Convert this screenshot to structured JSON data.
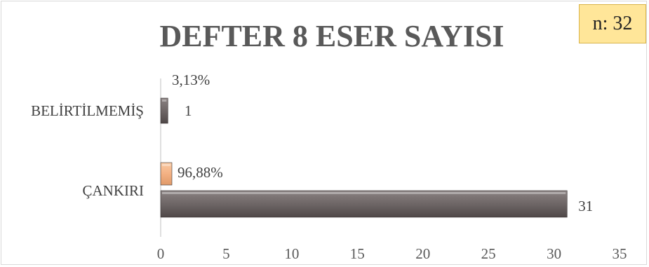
{
  "chart_data": {
    "type": "bar",
    "orientation": "horizontal",
    "title": "DEFTER 8 ESER SAYISI",
    "annotation": "n: 32",
    "categories": [
      "BELİRTİLMEMİŞ",
      "ÇANKIRI"
    ],
    "series": [
      {
        "values": [
          1,
          31
        ],
        "labels": [
          "1",
          "31"
        ],
        "color": "#6f6767"
      },
      {
        "values": [
          0.0313,
          0.9688
        ],
        "labels": [
          "3,13%",
          "96,88%"
        ],
        "color": "#f4b183"
      }
    ],
    "xlim": [
      0,
      35
    ],
    "xticks": [
      "0",
      "5",
      "10",
      "15",
      "20",
      "25",
      "30",
      "35"
    ],
    "grid": false,
    "legend": "none"
  }
}
